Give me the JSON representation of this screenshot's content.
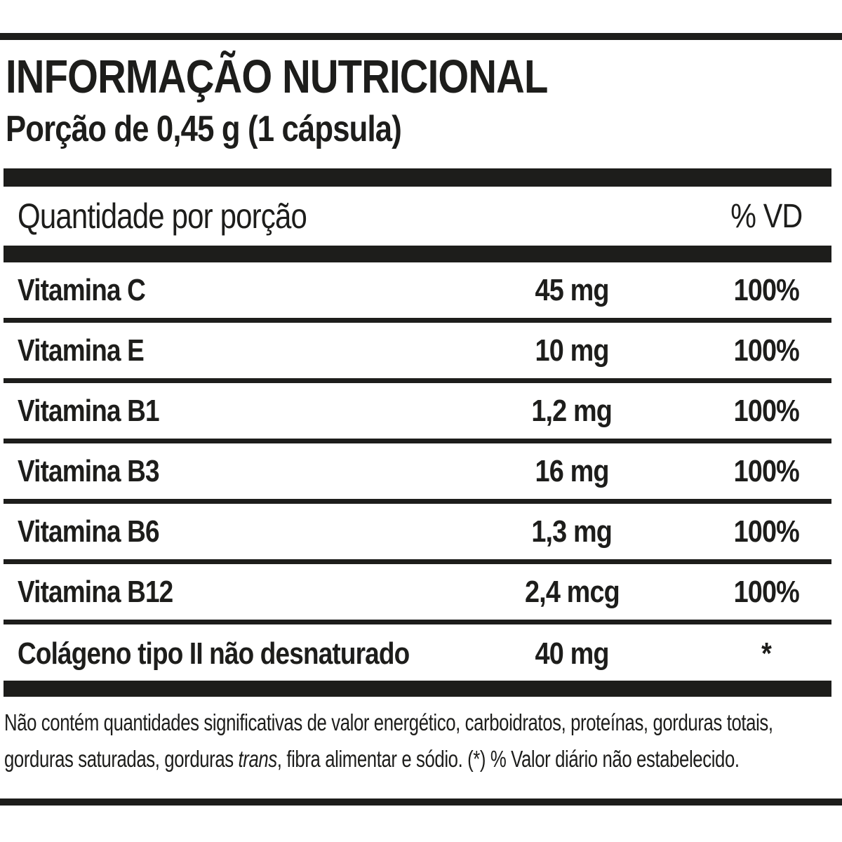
{
  "label": {
    "title": "INFORMAÇÃO NUTRICIONAL",
    "subtitle": "Porção de 0,45 g (1 cápsula)"
  },
  "table": {
    "header": {
      "quantity": "Quantidade por porção",
      "vd": "% VD"
    },
    "rows": [
      {
        "name": "Vitamina C",
        "amount": "45 mg",
        "vd": "100%"
      },
      {
        "name": "Vitamina E",
        "amount": "10 mg",
        "vd": "100%"
      },
      {
        "name": "Vitamina B1",
        "amount": "1,2 mg",
        "vd": "100%"
      },
      {
        "name": "Vitamina B3",
        "amount": "16 mg",
        "vd": "100%"
      },
      {
        "name": "Vitamina B6",
        "amount": "1,3 mg",
        "vd": "100%"
      },
      {
        "name": "Vitamina B12",
        "amount": "2,4 mcg",
        "vd": "100%"
      },
      {
        "name": "Colágeno tipo II não desnaturado",
        "amount": "40 mg",
        "vd": "*"
      }
    ]
  },
  "footer": {
    "line1": "Não contém quantidades significativas de valor energético, carboidratos, proteínas, gorduras totais,",
    "line2_pre": "gorduras saturadas, gorduras ",
    "line2_italic": "trans",
    "line2_post": ", fibra alimentar e sódio. (*) % Valor diário não estabelecido."
  },
  "colors": {
    "ink": "#1d1d1b",
    "background": "#ffffff"
  }
}
